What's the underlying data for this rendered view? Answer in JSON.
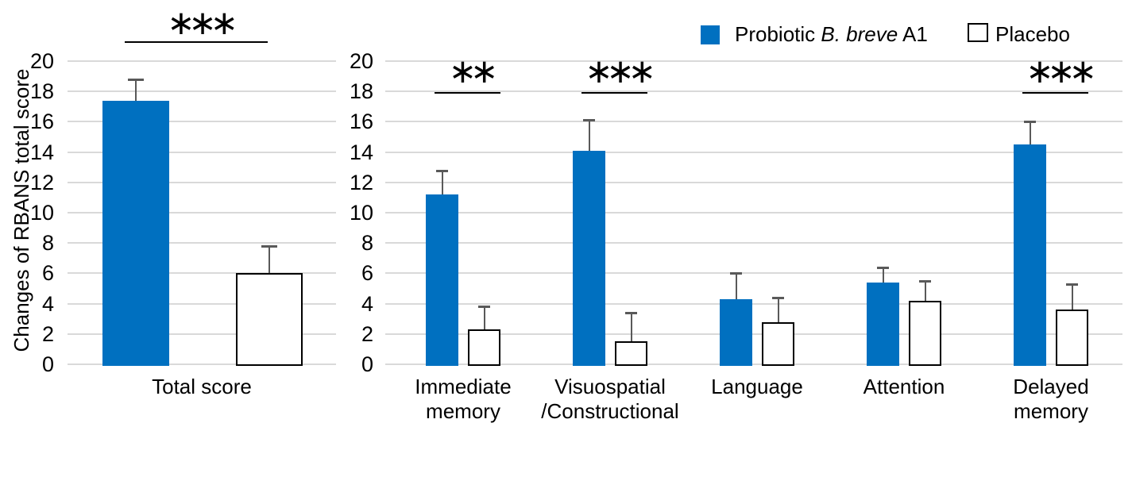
{
  "figure": {
    "ylabel": "Changes of RBANS total score"
  },
  "legend": {
    "position": "top-right",
    "probiotic": {
      "prefix": "Probiotic ",
      "italic": "B. breve",
      "suffix": " A1",
      "color": "#0070C0"
    },
    "placebo": {
      "label": "Placebo",
      "fill": "#FFFFFF",
      "border": "#000000"
    }
  },
  "colors": {
    "bar_blue": "#0070C0",
    "bar_white_fill": "#FFFFFF",
    "bar_white_border": "#000000",
    "error_bar": "#595959",
    "gridline": "#D9D9D9",
    "text": "#000000"
  },
  "chart_data": [
    {
      "type": "bar",
      "ylabel": "Changes of RBANS total score",
      "ylim": [
        0,
        20
      ],
      "ytick_step": 2,
      "grid": true,
      "categories": [
        "Total score"
      ],
      "category_lines": [
        [
          "Total score"
        ]
      ],
      "series": [
        {
          "name": "Probiotic B. breve A1",
          "key": "probiotic",
          "color": "#0070C0",
          "values": [
            17.4
          ],
          "errors_upper": [
            1.4
          ]
        },
        {
          "name": "Placebo",
          "key": "placebo",
          "color": "#FFFFFF",
          "values": [
            6.0
          ],
          "errors_upper": [
            1.8
          ]
        }
      ],
      "significance": [
        {
          "category_index": 0,
          "label": "***"
        }
      ]
    },
    {
      "type": "bar",
      "ylabel": "",
      "ylim": [
        0,
        20
      ],
      "ytick_step": 2,
      "grid": true,
      "categories": [
        "Immediate memory",
        "Visuospatial /Constructional",
        "Language",
        "Attention",
        "Delayed memory"
      ],
      "category_lines": [
        [
          "Immediate",
          "memory"
        ],
        [
          "Visuospatial",
          "/Constructional"
        ],
        [
          "Language"
        ],
        [
          "Attention"
        ],
        [
          "Delayed",
          "memory"
        ]
      ],
      "series": [
        {
          "name": "Probiotic B. breve A1",
          "key": "probiotic",
          "color": "#0070C0",
          "values": [
            11.2,
            14.1,
            4.3,
            5.4,
            14.5
          ],
          "errors_upper": [
            1.6,
            2.0,
            1.7,
            1.0,
            1.5
          ]
        },
        {
          "name": "Placebo",
          "key": "placebo",
          "color": "#FFFFFF",
          "values": [
            2.3,
            1.5,
            2.8,
            4.2,
            3.6
          ],
          "errors_upper": [
            1.5,
            1.9,
            1.6,
            1.3,
            1.7
          ]
        }
      ],
      "significance": [
        {
          "category_index": 0,
          "label": "**"
        },
        {
          "category_index": 1,
          "label": "***"
        },
        {
          "category_index": 4,
          "label": "***"
        }
      ]
    }
  ]
}
